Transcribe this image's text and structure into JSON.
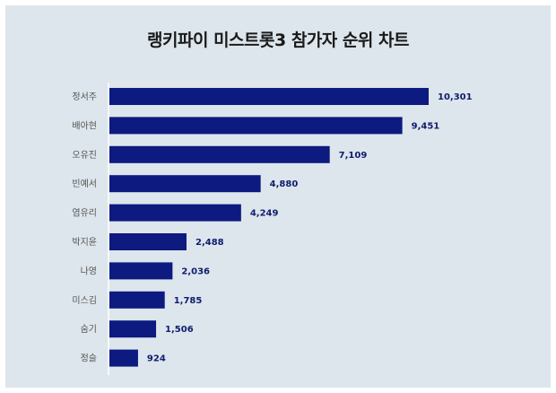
{
  "colors": {
    "background": "#dde6ec",
    "bar": "#0d1a80",
    "value_text": "#0f1c6e"
  },
  "chart_data": {
    "type": "bar",
    "orientation": "horizontal",
    "title": "랭키파이 미스트롯3 참가자 순위 차트",
    "xlabel": "",
    "ylabel": "",
    "categories": [
      "정서주",
      "배아현",
      "오유진",
      "빈예서",
      "염유리",
      "박지윤",
      "나영",
      "미스김",
      "숨기",
      "정슬"
    ],
    "values": [
      10301,
      9451,
      7109,
      4880,
      4249,
      2488,
      2036,
      1785,
      1506,
      924
    ],
    "value_labels": [
      "10,301",
      "9,451",
      "7,109",
      "4,880",
      "4,249",
      "2,488",
      "2,036",
      "1,785",
      "1,506",
      "924"
    ],
    "xlim": [
      0,
      10301
    ],
    "grid": false,
    "legend": "none"
  }
}
